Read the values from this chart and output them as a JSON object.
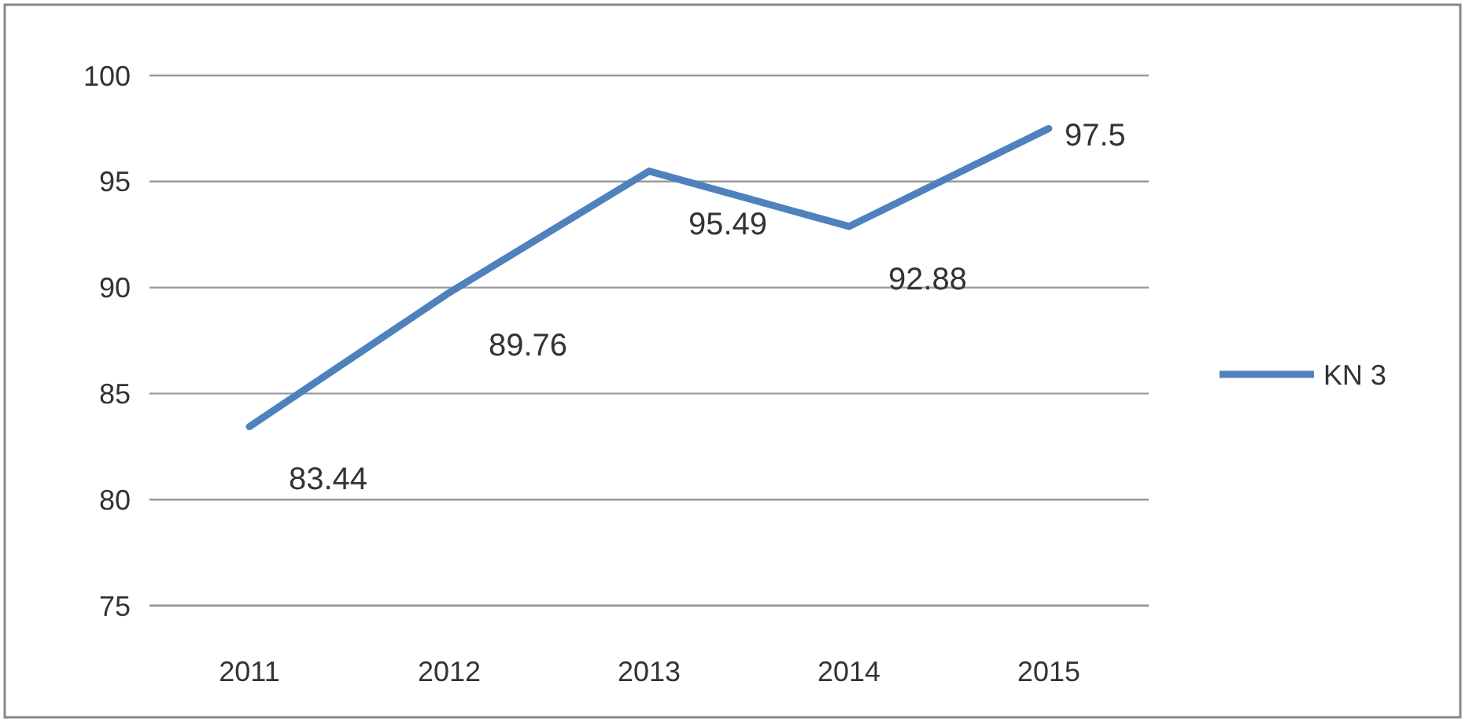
{
  "chart_data": {
    "type": "line",
    "categories": [
      "2011",
      "2012",
      "2013",
      "2014",
      "2015"
    ],
    "series": [
      {
        "name": "KN 3",
        "color": "#4f81bd",
        "values": [
          83.44,
          89.76,
          95.49,
          92.88,
          97.5
        ]
      }
    ],
    "ylim": [
      75,
      100
    ],
    "yticks": [
      75,
      80,
      85,
      90,
      95,
      100
    ],
    "grid": "y",
    "legend": "right",
    "data_labels": true,
    "marker": "none",
    "line_style": "solid"
  }
}
